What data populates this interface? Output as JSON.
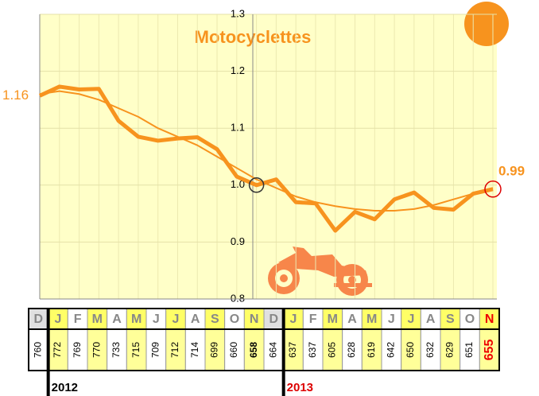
{
  "chart_data": {
    "type": "line",
    "title": "Motocyclettes",
    "categories": [
      "D",
      "J",
      "F",
      "M",
      "A",
      "M",
      "J",
      "J",
      "A",
      "S",
      "O",
      "N",
      "D",
      "J",
      "F",
      "M",
      "A",
      "M",
      "J",
      "J",
      "A",
      "S",
      "O",
      "N"
    ],
    "series": [
      {
        "color": "#f7931e",
        "width": 5,
        "values": [
          1.157,
          1.173,
          1.168,
          1.169,
          1.113,
          1.085,
          1.078,
          1.082,
          1.084,
          1.063,
          1.015,
          1.0,
          1.01,
          0.97,
          0.968,
          0.92,
          0.953,
          0.94,
          0.975,
          0.987,
          0.96,
          0.957,
          0.985,
          0.993
        ]
      },
      {
        "color": "#f7931e",
        "width": 2,
        "values": [
          1.16,
          1.165,
          1.16,
          1.15,
          1.135,
          1.12,
          1.1,
          1.085,
          1.07,
          1.05,
          1.03,
          1.01,
          0.995,
          0.98,
          0.97,
          0.963,
          0.958,
          0.955,
          0.955,
          0.958,
          0.965,
          0.975,
          0.985,
          0.995
        ]
      }
    ],
    "ylim": [
      0.8,
      1.3
    ],
    "yticks": [
      0.8,
      0.9,
      {
        "value": 1,
        "label": "1.0"
      },
      1.1,
      1.2,
      1.3
    ],
    "grid": true,
    "annotations": [
      "1.16",
      "0.99"
    ]
  },
  "table": {
    "values": [
      760,
      772,
      769,
      770,
      733,
      715,
      709,
      712,
      714,
      699,
      660,
      658,
      664,
      637,
      637,
      605,
      628,
      619,
      642,
      650,
      632,
      629,
      651,
      655
    ],
    "years": [
      "2012",
      "2013"
    ]
  }
}
